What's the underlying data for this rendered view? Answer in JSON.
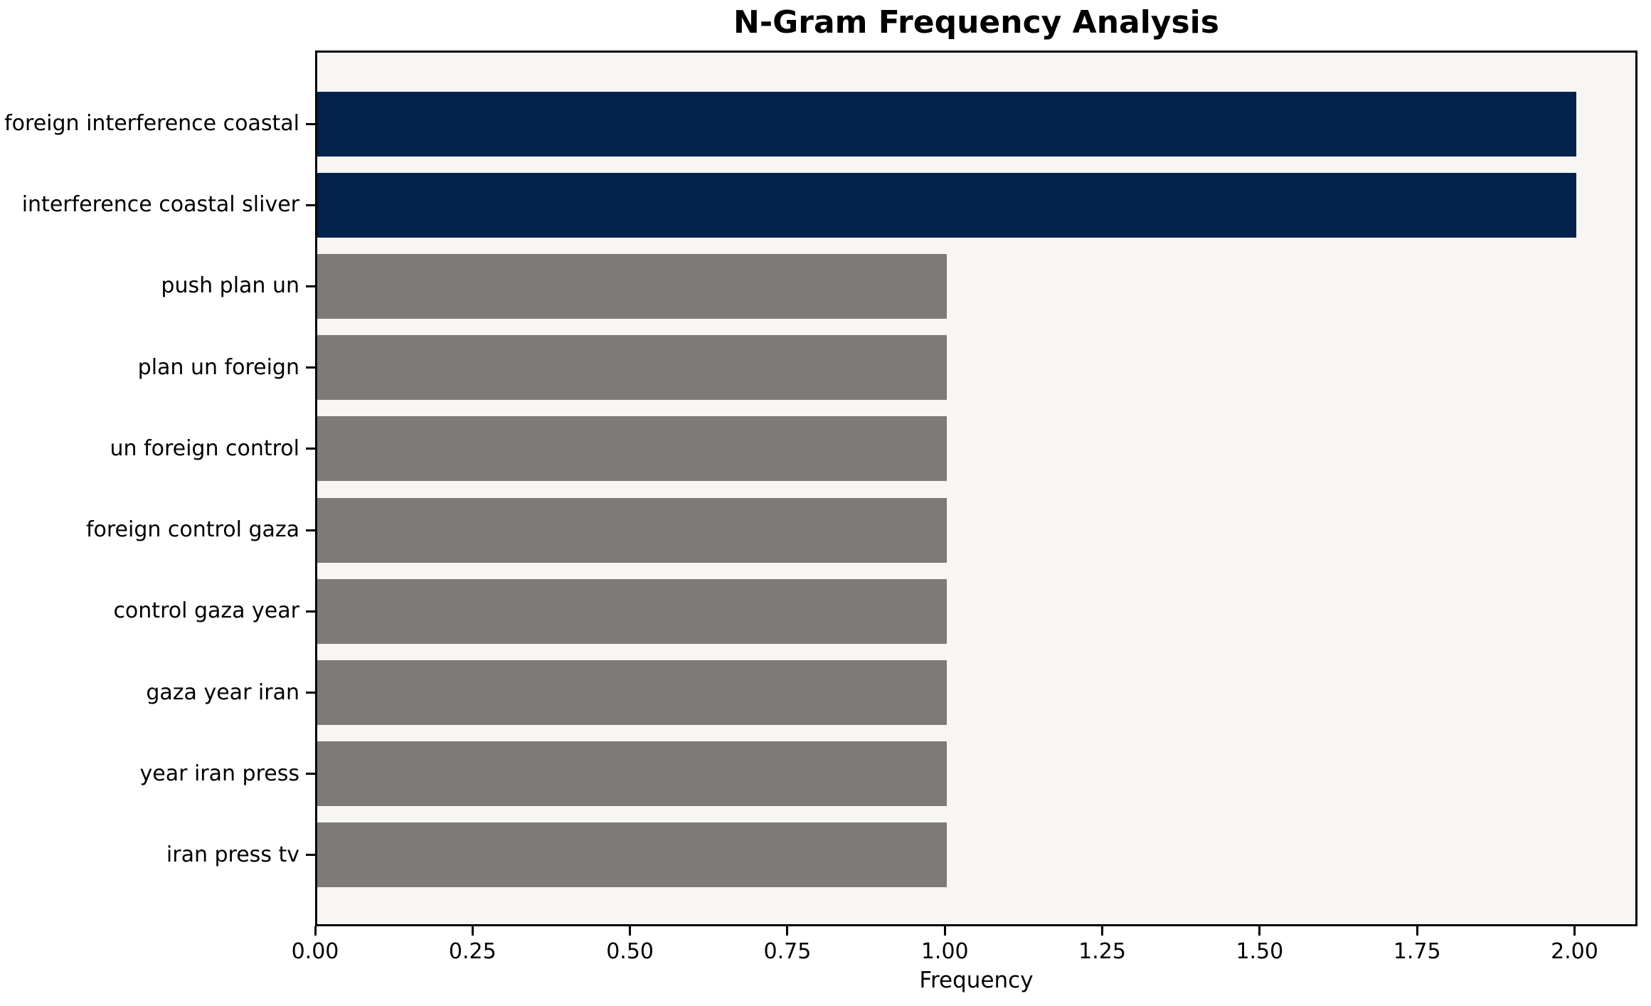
{
  "chart_data": {
    "type": "bar",
    "orientation": "horizontal",
    "title": "N-Gram Frequency Analysis",
    "xlabel": "Frequency",
    "ylabel": "",
    "categories": [
      "foreign interference coastal",
      "interference coastal sliver",
      "push plan un",
      "plan un foreign",
      "un foreign control",
      "foreign control gaza",
      "control gaza year",
      "gaza year iran",
      "year iran press",
      "iran press tv"
    ],
    "values": [
      2,
      2,
      1,
      1,
      1,
      1,
      1,
      1,
      1,
      1
    ],
    "colors": [
      "#03224c",
      "#03224c",
      "#7c7b77",
      "#7c7b77",
      "#7c7b77",
      "#7c7b77",
      "#7c7b77",
      "#7c7b77",
      "#7c7b77",
      "#7c7b77"
    ],
    "highlight_color": "#03224c",
    "base_color": "#7c7b77",
    "xlim": [
      0,
      2.1
    ],
    "xticks": [
      0,
      0.25,
      0.5,
      0.75,
      1.0,
      1.25,
      1.5,
      1.75,
      2.0
    ],
    "xtick_labels": [
      "0.00",
      "0.25",
      "0.50",
      "0.75",
      "1.00",
      "1.25",
      "1.50",
      "1.75",
      "2.00"
    ],
    "grid": false,
    "legend": null,
    "plot_background": "#f7f6f5",
    "figure_background": "#ffffff",
    "spine_color": "#000000",
    "text_color": "#000000"
  }
}
